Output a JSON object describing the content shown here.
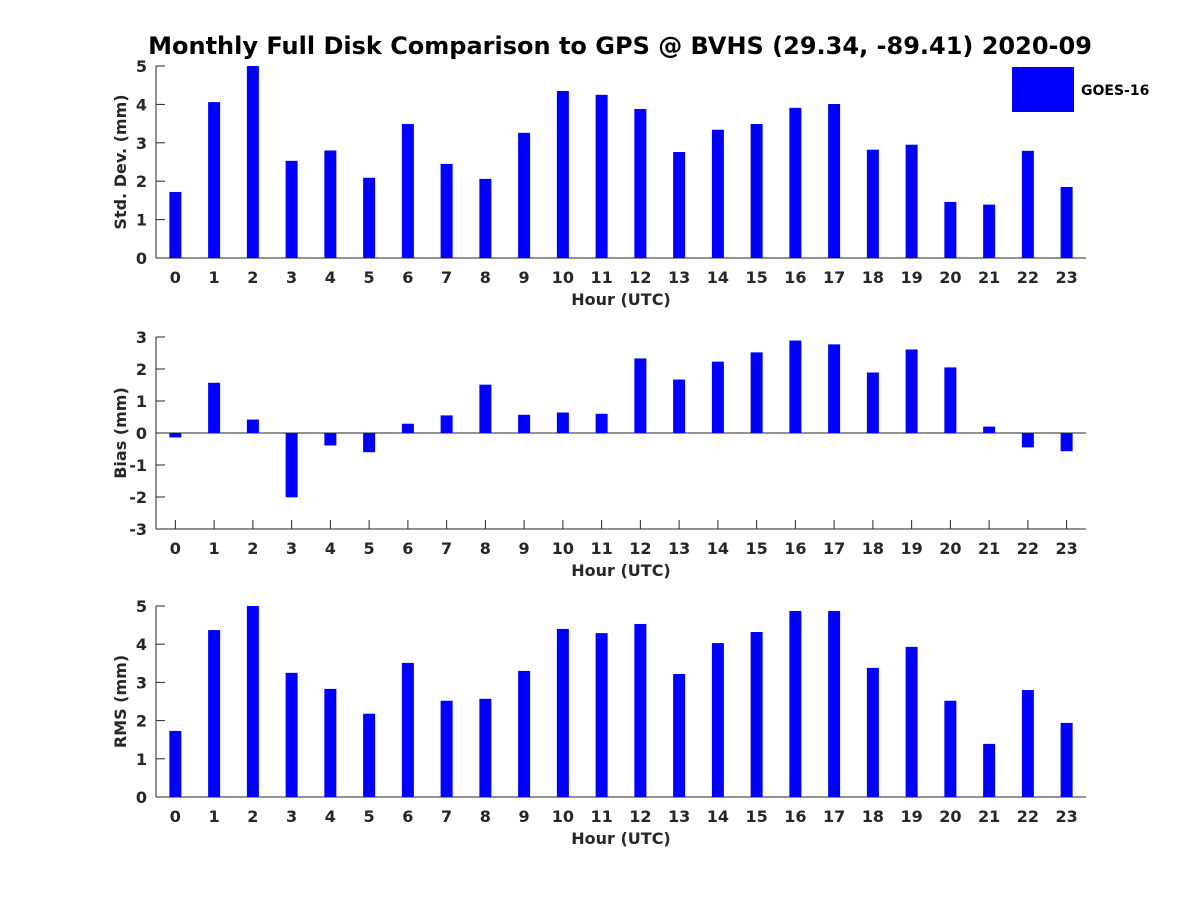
{
  "chart_data": {
    "title": "Monthly Full Disk Comparison to GPS @ BVHS (29.34, -89.41) 2020-09",
    "legend": {
      "entries": [
        {
          "label": "GOES-16",
          "color": "#0000ff"
        }
      ],
      "placement": "top-right"
    },
    "categories": [
      "0",
      "1",
      "2",
      "3",
      "4",
      "5",
      "6",
      "7",
      "8",
      "9",
      "10",
      "11",
      "12",
      "13",
      "14",
      "15",
      "16",
      "17",
      "18",
      "19",
      "20",
      "21",
      "22",
      "23"
    ],
    "subplots": [
      {
        "type": "bar",
        "name": "std-dev",
        "xlabel": "Hour (UTC)",
        "ylabel": "Std. Dev. (mm)",
        "ylim": [
          0,
          5
        ],
        "yticks": [
          "0",
          "1",
          "2",
          "3",
          "4",
          "5"
        ],
        "series": [
          {
            "name": "GOES-16",
            "color": "#0000ff",
            "values": [
              1.72,
              4.06,
              5.0,
              2.53,
              2.8,
              2.09,
              3.49,
              2.45,
              2.06,
              3.26,
              4.35,
              4.25,
              3.88,
              2.76,
              3.34,
              3.49,
              3.91,
              4.01,
              2.82,
              2.95,
              1.46,
              1.39,
              2.79,
              1.85
            ]
          }
        ]
      },
      {
        "type": "bar",
        "name": "bias",
        "xlabel": "Hour (UTC)",
        "ylabel": "Bias (mm)",
        "ylim": [
          -3,
          3
        ],
        "yticks": [
          "-3",
          "-2",
          "-1",
          "0",
          "1",
          "2",
          "3"
        ],
        "series": [
          {
            "name": "GOES-16",
            "color": "#0000ff",
            "values": [
              -0.14,
              1.57,
              0.42,
              -2.01,
              -0.39,
              -0.6,
              0.29,
              0.55,
              1.51,
              0.57,
              0.64,
              0.6,
              2.33,
              1.67,
              2.23,
              2.52,
              2.89,
              2.77,
              1.89,
              2.61,
              2.05,
              0.2,
              -0.45,
              -0.57
            ]
          }
        ]
      },
      {
        "type": "bar",
        "name": "rms",
        "xlabel": "Hour (UTC)",
        "ylabel": "RMS (mm)",
        "ylim": [
          0,
          5
        ],
        "yticks": [
          "0",
          "1",
          "2",
          "3",
          "4",
          "5"
        ],
        "series": [
          {
            "name": "GOES-16",
            "color": "#0000ff",
            "values": [
              1.73,
              4.37,
              5.0,
              3.25,
              2.83,
              2.18,
              3.51,
              2.52,
              2.57,
              3.3,
              4.4,
              4.29,
              4.53,
              3.22,
              4.03,
              4.32,
              4.87,
              4.87,
              3.38,
              3.93,
              2.52,
              1.39,
              2.8,
              1.94
            ]
          }
        ]
      }
    ]
  }
}
